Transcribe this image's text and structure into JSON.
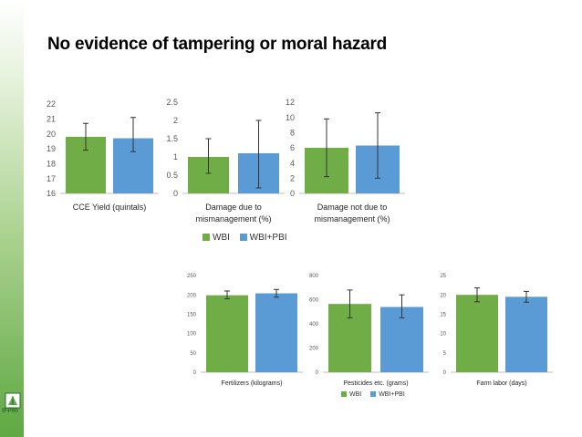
{
  "slide": {
    "title": "No evidence of tampering or moral hazard",
    "logo_text": "IFPRI"
  },
  "colors": {
    "wbi": "#70ad47",
    "wbi_pbi": "#5b9bd5",
    "error_bar": "#333333"
  },
  "legend_top": {
    "wbi": "WBI",
    "wbi_pbi": "WBI+PBI"
  },
  "legend_bottom": {
    "wbi": "WBI",
    "wbi_pbi": "WBI+PBI"
  },
  "chart_data": [
    {
      "type": "bar",
      "xlabel": [
        "CCE Yield (quintals)"
      ],
      "series": [
        {
          "name": "WBI",
          "value": 19.8,
          "err": [
            18.9,
            20.7
          ]
        },
        {
          "name": "WBI+PBI",
          "value": 19.7,
          "err": [
            18.8,
            21.1
          ]
        }
      ],
      "ylim": [
        16,
        22
      ],
      "ticks": [
        "16",
        "17",
        "18",
        "19",
        "20",
        "21",
        "22"
      ]
    },
    {
      "type": "bar",
      "xlabel": [
        "Damage due to",
        "mismanagement (%)"
      ],
      "series": [
        {
          "name": "WBI",
          "value": 1.0,
          "err": [
            0.55,
            1.5
          ]
        },
        {
          "name": "WBI+PBI",
          "value": 1.1,
          "err": [
            0.15,
            2.0
          ]
        }
      ],
      "ylim": [
        0,
        2.5
      ],
      "ticks": [
        "0",
        "0.5",
        "1",
        "1.5",
        "2",
        "2.5"
      ]
    },
    {
      "type": "bar",
      "xlabel": [
        "Damage not due to",
        "mismanagement (%)"
      ],
      "series": [
        {
          "name": "WBI",
          "value": 6.0,
          "err": [
            2.2,
            9.8
          ]
        },
        {
          "name": "WBI+PBI",
          "value": 6.3,
          "err": [
            2.0,
            10.6
          ]
        }
      ],
      "ylim": [
        0,
        12
      ],
      "ticks": [
        "0",
        "2",
        "4",
        "6",
        "8",
        "10",
        "12"
      ]
    },
    {
      "type": "bar",
      "xlabel": [
        "Fertilizers (kilograms)"
      ],
      "series": [
        {
          "name": "WBI",
          "value": 199,
          "err": [
            190,
            210
          ]
        },
        {
          "name": "WBI+PBI",
          "value": 204,
          "err": [
            194,
            214
          ]
        }
      ],
      "ylim": [
        0,
        250
      ],
      "ticks": [
        "0",
        "50",
        "100",
        "150",
        "200",
        "250"
      ]
    },
    {
      "type": "bar",
      "xlabel": [
        "Pesticides etc. (grams)"
      ],
      "series": [
        {
          "name": "WBI",
          "value": 565,
          "err": [
            450,
            680
          ]
        },
        {
          "name": "WBI+PBI",
          "value": 540,
          "err": [
            450,
            640
          ]
        }
      ],
      "ylim": [
        0,
        800
      ],
      "ticks": [
        "0",
        "200",
        "400",
        "600",
        "800"
      ]
    },
    {
      "type": "bar",
      "xlabel": [
        "Farm labor (days)"
      ],
      "series": [
        {
          "name": "WBI",
          "value": 20.0,
          "err": [
            18.2,
            21.8
          ]
        },
        {
          "name": "WBI+PBI",
          "value": 19.5,
          "err": [
            18.1,
            20.9
          ]
        }
      ],
      "ylim": [
        0,
        25
      ],
      "ticks": [
        "0",
        "5",
        "10",
        "15",
        "20",
        "25"
      ]
    }
  ]
}
